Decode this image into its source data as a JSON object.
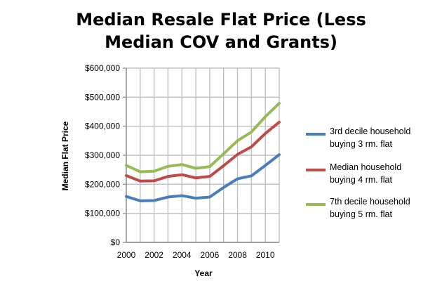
{
  "chart_data": {
    "type": "line",
    "title_lines": [
      "Median Resale Flat Price (Less",
      "Median COV and Grants)"
    ],
    "xlabel": "Year",
    "ylabel": "Median Flat Price",
    "x": [
      2000,
      2001,
      2002,
      2003,
      2004,
      2005,
      2006,
      2007,
      2008,
      2009,
      2010,
      2011
    ],
    "xlim": [
      2000,
      2011
    ],
    "ylim": [
      0,
      600000
    ],
    "x_ticks": [
      2000,
      2002,
      2004,
      2006,
      2008,
      2010
    ],
    "x_tick_labels": [
      "2000",
      "2002",
      "2004",
      "2006",
      "2008",
      "2010"
    ],
    "y_ticks": [
      0,
      100000,
      200000,
      300000,
      400000,
      500000,
      600000
    ],
    "y_tick_labels": [
      "$0",
      "$100,000",
      "$200,000",
      "$300,000",
      "$400,000",
      "$500,000",
      "$600,000"
    ],
    "grid": true,
    "legend_position": "right",
    "series": [
      {
        "name": "3rd decile household buying 3 rm. flat",
        "legend_lines": [
          "3rd decile household",
          "buying 3 rm. flat"
        ],
        "color": "#4A7EBB",
        "values": [
          158000,
          143000,
          144000,
          156000,
          161000,
          152000,
          156000,
          189000,
          219000,
          229000,
          265000,
          302000
        ]
      },
      {
        "name": "Median household buying 4 rm. flat",
        "legend_lines": [
          "Median household",
          "buying 4 rm. flat"
        ],
        "color": "#BE4B48",
        "values": [
          230000,
          211000,
          212000,
          227000,
          233000,
          222000,
          227000,
          264000,
          303000,
          329000,
          375000,
          414000
        ]
      },
      {
        "name": "7th decile household buying 5 rm. flat",
        "legend_lines": [
          "7th decile household",
          "buying 5 rm. flat"
        ],
        "color": "#98B954",
        "values": [
          265000,
          243000,
          245000,
          262000,
          268000,
          255000,
          261000,
          305000,
          350000,
          380000,
          433000,
          479000
        ]
      }
    ]
  }
}
